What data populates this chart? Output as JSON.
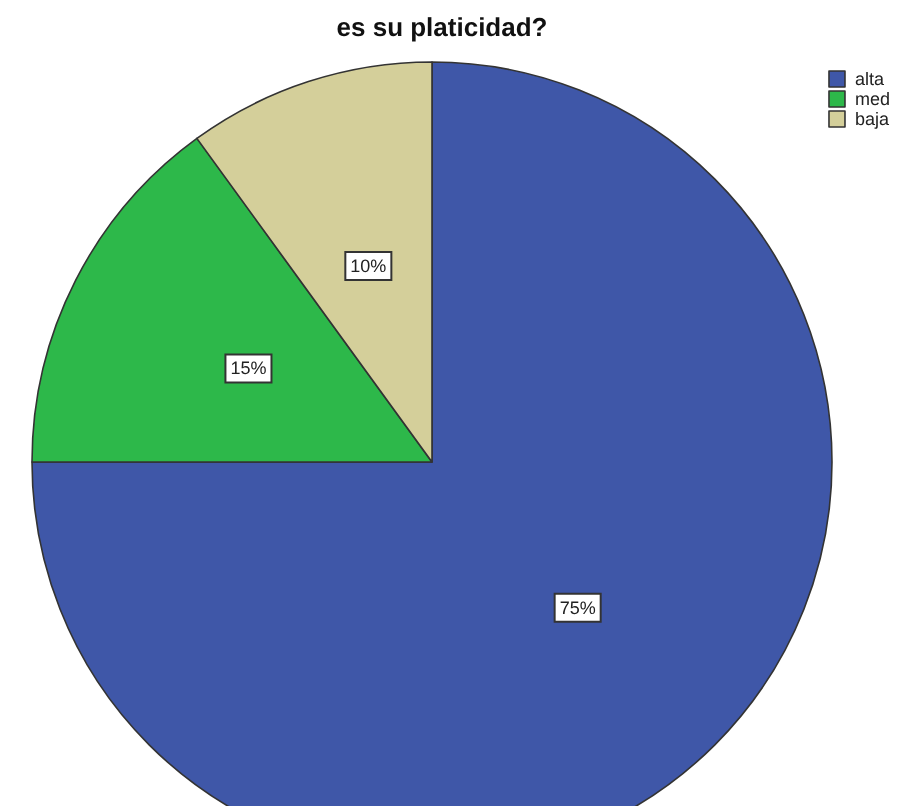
{
  "chart_data": {
    "type": "pie",
    "title": "es su platicidad?",
    "categories": [
      "alta",
      "med",
      "baja"
    ],
    "values": [
      75,
      15,
      10
    ],
    "colors": [
      "#3f57a8",
      "#2db84a",
      "#d4cf9a"
    ],
    "value_labels": [
      "75%",
      "15%",
      "10%"
    ],
    "legend": "top right"
  }
}
